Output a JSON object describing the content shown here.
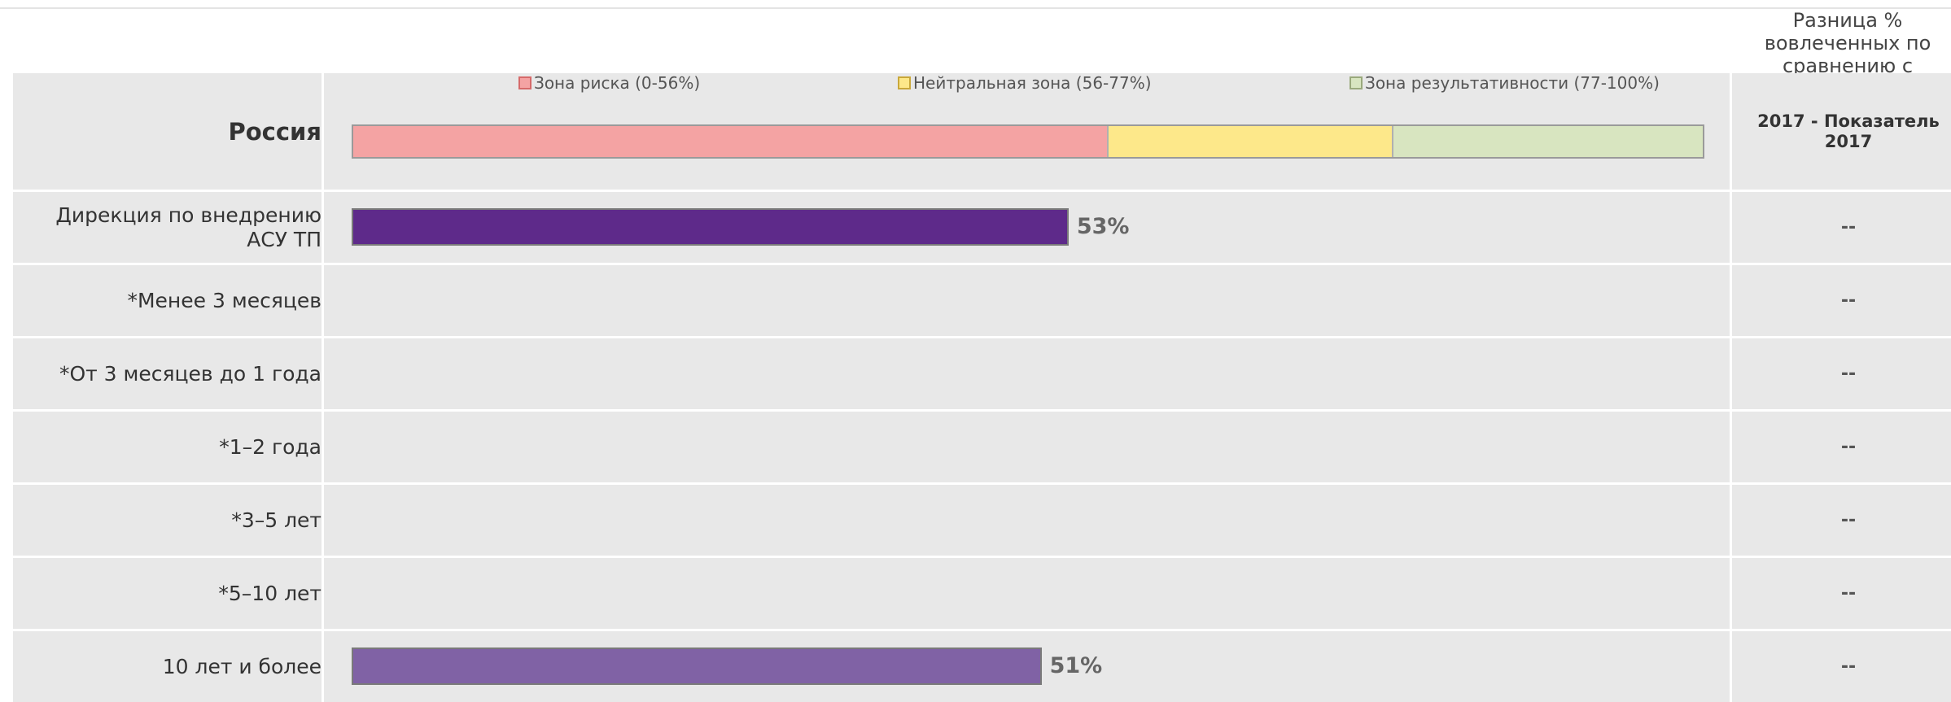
{
  "header": {
    "diff_title": "Разница % вовлеченных по сравнению с",
    "diff_subtitle": "2017 - Показатель 2017"
  },
  "legend": [
    {
      "label": "Зона риска (0-56%)",
      "fill": "#f4a3a3",
      "stroke": "#d66a6a"
    },
    {
      "label": "Нейтральная зона (56-77%)",
      "fill": "#fde88a",
      "stroke": "#c9a83a"
    },
    {
      "label": "Зона результативности (77-100%)",
      "fill": "#d8e5c0",
      "stroke": "#9aa97c"
    }
  ],
  "colors": {
    "row_bg": "#e8e8e8",
    "bar_primary": "#5e2a8a",
    "bar_secondary": "#8062a5"
  },
  "chart_data": {
    "type": "bar",
    "orientation": "horizontal",
    "xlim": [
      0,
      100
    ],
    "reference": {
      "label": "Россия",
      "zones": [
        {
          "name": "Зона риска",
          "from": 0,
          "to": 56,
          "color": "#f4a3a3"
        },
        {
          "name": "Нейтральная зона",
          "from": 56,
          "to": 77,
          "color": "#fde88a"
        },
        {
          "name": "Зона результативности",
          "from": 77,
          "to": 100,
          "color": "#d8e5c0"
        }
      ],
      "diff": ""
    },
    "categories": [
      "Дирекция по внедрению АСУ ТП",
      "*Менее 3 месяцев",
      "*От 3 месяцев до 1 года",
      "*1–2 года",
      "*3–5 лет",
      "*5–10 лет",
      "10 лет и более"
    ],
    "values": [
      53,
      null,
      null,
      null,
      null,
      null,
      51
    ],
    "value_labels": [
      "53%",
      "",
      "",
      "",
      "",
      "",
      "51%"
    ],
    "diffs": [
      "--",
      "--",
      "--",
      "--",
      "--",
      "--",
      "--"
    ],
    "bar_colors": [
      "#5e2a8a",
      null,
      null,
      null,
      null,
      null,
      "#8062a5"
    ]
  }
}
